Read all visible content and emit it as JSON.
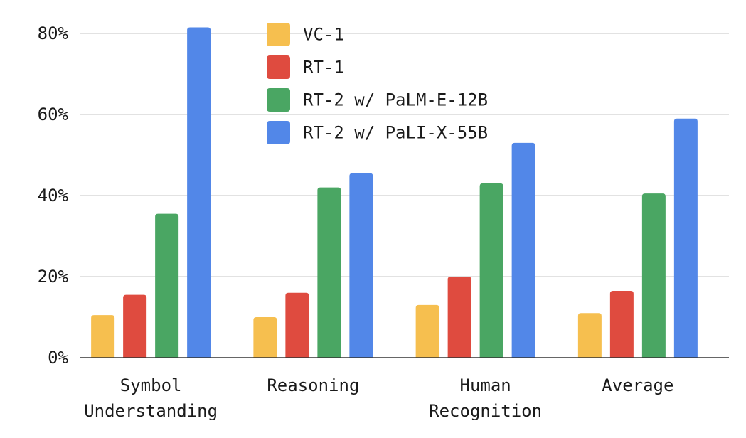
{
  "chart_data": {
    "type": "bar",
    "title": "",
    "xlabel": "",
    "ylabel": "",
    "ylim": [
      0,
      80
    ],
    "yticks": [
      0,
      20,
      40,
      60,
      80
    ],
    "ytick_labels": [
      "0%",
      "20%",
      "40%",
      "60%",
      "80%"
    ],
    "grid": true,
    "legend_position": "top-center",
    "categories": [
      [
        "Symbol",
        "Understanding"
      ],
      [
        "Reasoning"
      ],
      [
        "Human",
        "Recognition"
      ],
      [
        "Average"
      ]
    ],
    "series": [
      {
        "name": "VC-1",
        "color": "#f6bf4f",
        "values": [
          10.5,
          10,
          13,
          11
        ]
      },
      {
        "name": "RT-1",
        "color": "#df4b3f",
        "values": [
          15.5,
          16,
          20,
          16.5
        ]
      },
      {
        "name": "RT-2 w/ PaLM-E-12B",
        "color": "#4aa663",
        "values": [
          35.5,
          42,
          43,
          40.5
        ]
      },
      {
        "name": "RT-2 w/ PaLI-X-55B",
        "color": "#5287e8",
        "values": [
          81.5,
          45.5,
          53,
          59
        ]
      }
    ]
  }
}
